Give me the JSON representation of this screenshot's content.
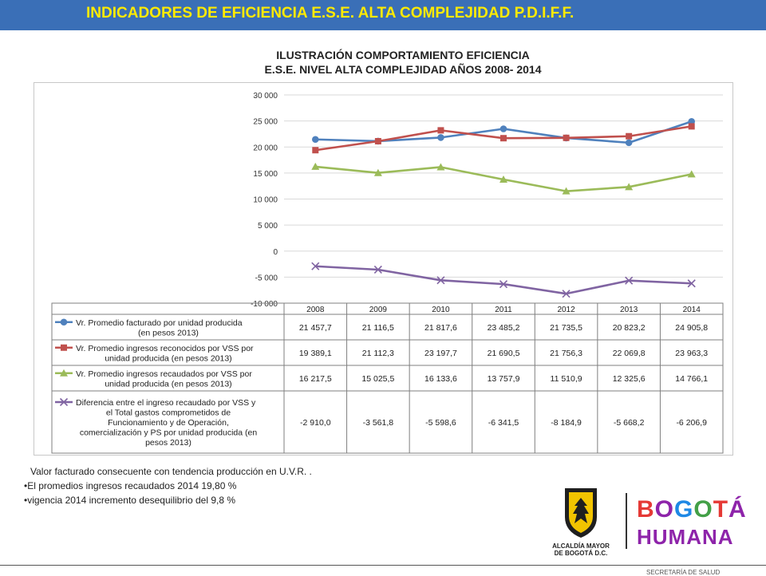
{
  "header": {
    "title": "INDICADORES DE EFICIENCIA E.S.E. ALTA COMPLEJIDAD P.D.I.F.F."
  },
  "chart_title": {
    "line1": "ILUSTRACIÓN COMPORTAMIENTO EFICIENCIA",
    "line2": "E.S.E. NIVEL ALTA COMPLEJIDAD AÑOS 2008- 2014"
  },
  "chart_data": {
    "type": "line",
    "categories": [
      "2008",
      "2009",
      "2010",
      "2011",
      "2012",
      "2013",
      "2014"
    ],
    "ylim": [
      -10000,
      30000
    ],
    "yticks": [
      30000,
      25000,
      20000,
      15000,
      10000,
      5000,
      0,
      -5000,
      -10000
    ],
    "ytick_labels": [
      "30 000",
      "25 000",
      "20 000",
      "15 000",
      "10 000",
      "5 000",
      "0",
      "-5 000",
      "-10 000"
    ],
    "grid": true,
    "legend": "data-table",
    "series": [
      {
        "name": "Vr. Promedio facturado por unidad producida (en pesos 2013)",
        "label_lines": [
          "Vr. Promedio facturado por unidad producida",
          "(en pesos 2013)"
        ],
        "color": "#4f81bd",
        "marker": "circle",
        "values": [
          21457.7,
          21116.5,
          21817.6,
          23485.2,
          21735.5,
          20823.2,
          24905.8
        ],
        "labels": [
          "21 457,7",
          "21 116,5",
          "21 817,6",
          "23 485,2",
          "21 735,5",
          "20 823,2",
          "24 905,8"
        ]
      },
      {
        "name": "Vr. Promedio ingresos reconocidos por VSS por unidad producida (en pesos 2013)",
        "label_lines": [
          "Vr. Promedio ingresos reconocidos por VSS por",
          "unidad producida (en pesos 2013)"
        ],
        "color": "#c0504d",
        "marker": "square",
        "values": [
          19389.1,
          21112.3,
          23197.7,
          21690.5,
          21756.3,
          22069.8,
          23963.3
        ],
        "labels": [
          "19 389,1",
          "21 112,3",
          "23 197,7",
          "21 690,5",
          "21 756,3",
          "22 069,8",
          "23 963,3"
        ]
      },
      {
        "name": "Vr. Promedio ingresos recaudados por VSS por unidad producida (en pesos 2013)",
        "label_lines": [
          "Vr. Promedio ingresos recaudados por VSS por",
          "unidad producida (en pesos 2013)"
        ],
        "color": "#9bbb59",
        "marker": "triangle",
        "values": [
          16217.5,
          15025.5,
          16133.6,
          13757.9,
          11510.9,
          12325.6,
          14766.1
        ],
        "labels": [
          "16 217,5",
          "15 025,5",
          "16 133,6",
          "13 757,9",
          "11 510,9",
          "12 325,6",
          "14 766,1"
        ]
      },
      {
        "name": "Diferencia entre el ingreso recaudado por VSS y el Total gastos comprometidos de Funcionamiento y de Operación, comercialización y PS por unidad producida (en pesos 2013)",
        "label_lines": [
          "Diferencia entre el ingreso recaudado por VSS y",
          "el Total gastos comprometidos de",
          "Funcionamiento y de Operación,",
          "comercialización y PS por unidad producida (en",
          "pesos 2013)"
        ],
        "color": "#8064a2",
        "marker": "x",
        "values": [
          -2910.0,
          -3561.8,
          -5598.6,
          -6341.5,
          -8184.9,
          -5668.2,
          -6206.9
        ],
        "labels": [
          "-2 910,0",
          "-3 561,8",
          "-5 598,6",
          "-6 341,5",
          "-8 184,9",
          "-5 668,2",
          "-6 206,9"
        ]
      }
    ]
  },
  "notes": [
    "Valor facturado consecuente con tendencia producción en U.V.R. .",
    "•El promedios ingresos recaudados 2014   19,80 %",
    "•vigencia 2014 incremento desequilibrio  del 9,8 %"
  ],
  "logos": {
    "alcaldia_line1": "ALCALDÍA MAYOR",
    "alcaldia_line2": "DE BOGOTÁ D.C.",
    "bogota": "BOGOTÁ",
    "humana": "HUMANA",
    "alcaldia_color": "#f2c400",
    "bogota_colors": [
      "#e53935",
      "#8e24aa",
      "#1e88e5",
      "#43a047"
    ]
  },
  "footer": {
    "text": "SECRETARÍA DE SALUD"
  }
}
